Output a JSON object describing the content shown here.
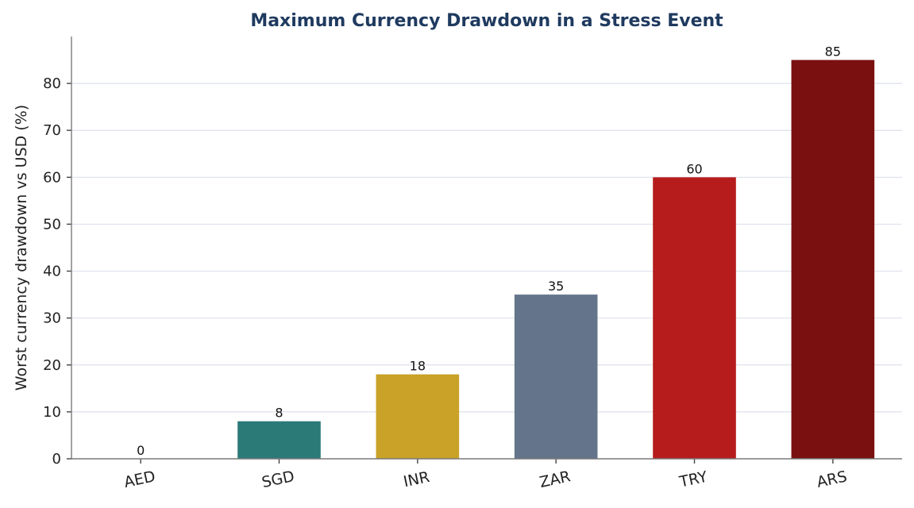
{
  "chart_data": {
    "type": "bar",
    "title": "Maximum Currency Drawdown in a Stress Event",
    "xlabel": "",
    "ylabel": "Worst currency drawdown vs USD (%)",
    "categories": [
      "AED",
      "SGD",
      "INR",
      "ZAR",
      "TRY",
      "ARS"
    ],
    "values": [
      0,
      8,
      18,
      35,
      60,
      85
    ],
    "data_labels": [
      "0",
      "8",
      "18",
      "35",
      "60",
      "85"
    ],
    "colors": [
      "#2b7a78",
      "#2b7a78",
      "#c9a227",
      "#64748b",
      "#b71c1c",
      "#7a1010"
    ],
    "ylim": [
      0,
      90
    ],
    "yticks": [
      0,
      10,
      20,
      30,
      40,
      50,
      60,
      70,
      80
    ],
    "ytick_labels": [
      "0",
      "10",
      "20",
      "30",
      "40",
      "50",
      "60",
      "70",
      "80"
    ],
    "grid": "horizontal",
    "legend": "none"
  }
}
